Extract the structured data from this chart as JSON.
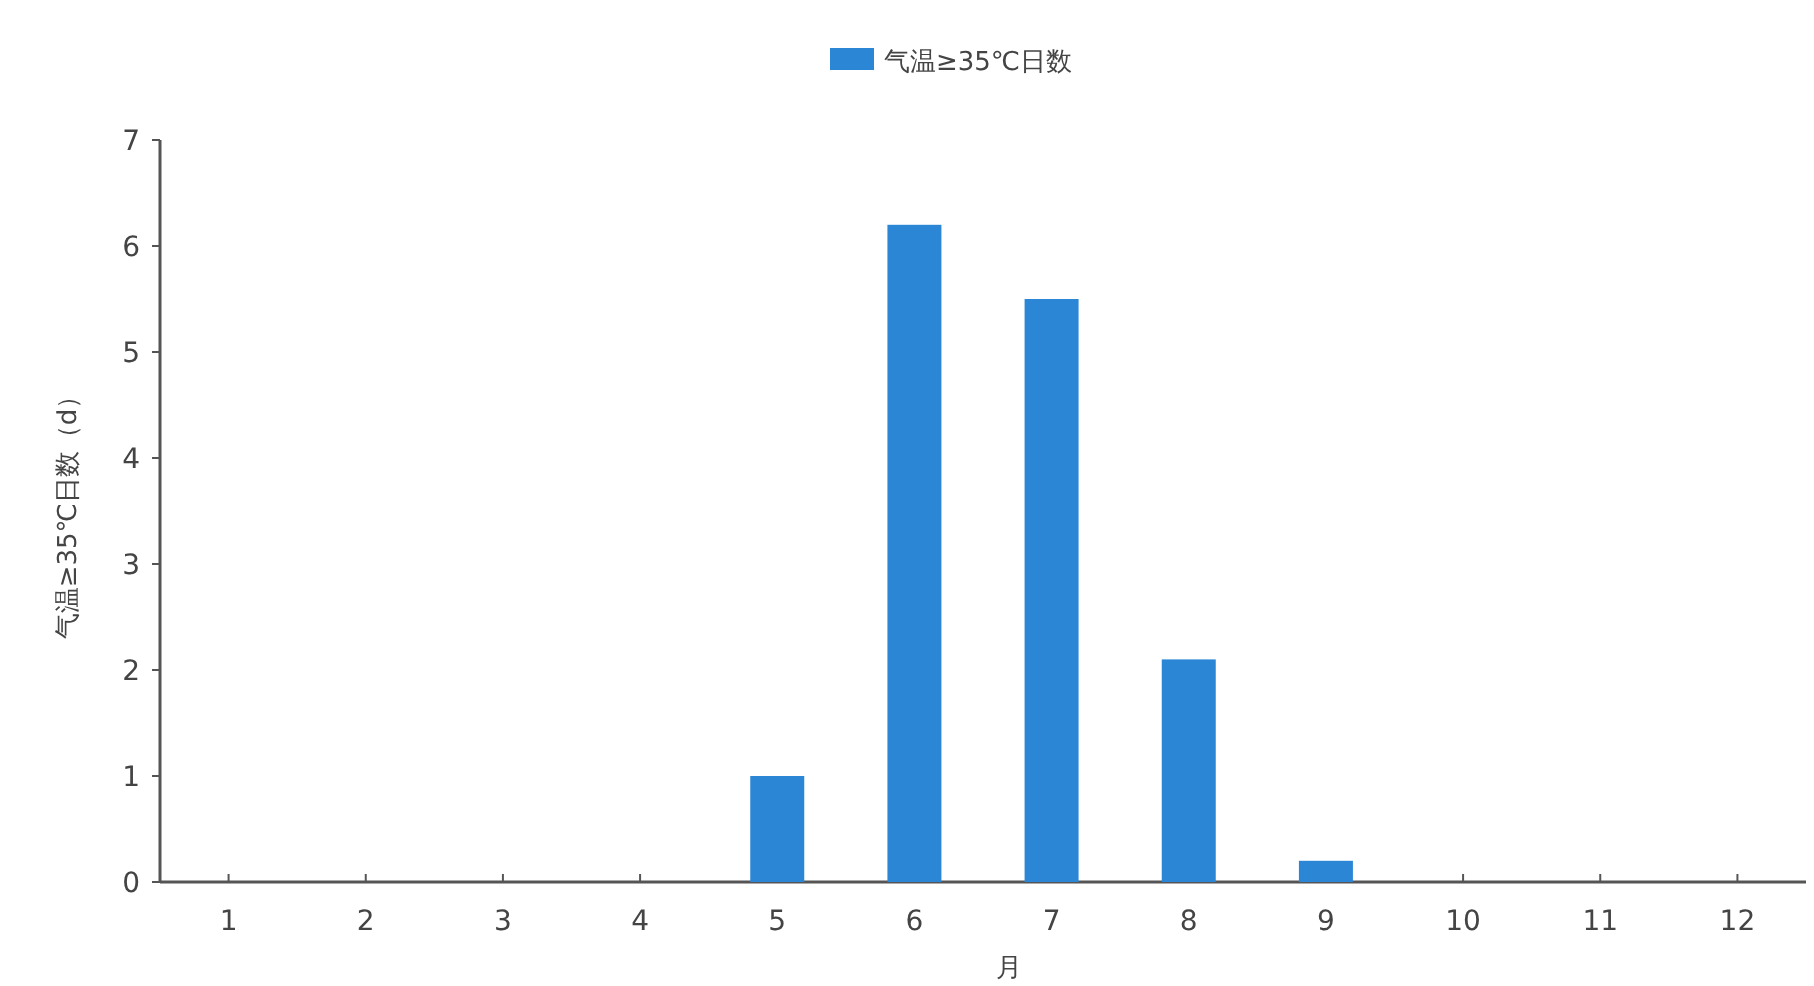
{
  "chart_data": {
    "type": "bar",
    "xlabel": "月",
    "ylabel": "气温≥35℃日数（d）",
    "categories": [
      "1",
      "2",
      "3",
      "4",
      "5",
      "6",
      "7",
      "8",
      "9",
      "10",
      "11",
      "12"
    ],
    "series": [
      {
        "name": "气温≥35℃日数",
        "color": "#2b86d6",
        "values": [
          0,
          0,
          0,
          0,
          1,
          6.2,
          5.5,
          2.1,
          0.2,
          0,
          0,
          0
        ]
      }
    ],
    "ylim": [
      0,
      7
    ],
    "yticks": [
      0,
      1,
      2,
      3,
      4,
      5,
      6,
      7
    ],
    "legend": "top"
  }
}
